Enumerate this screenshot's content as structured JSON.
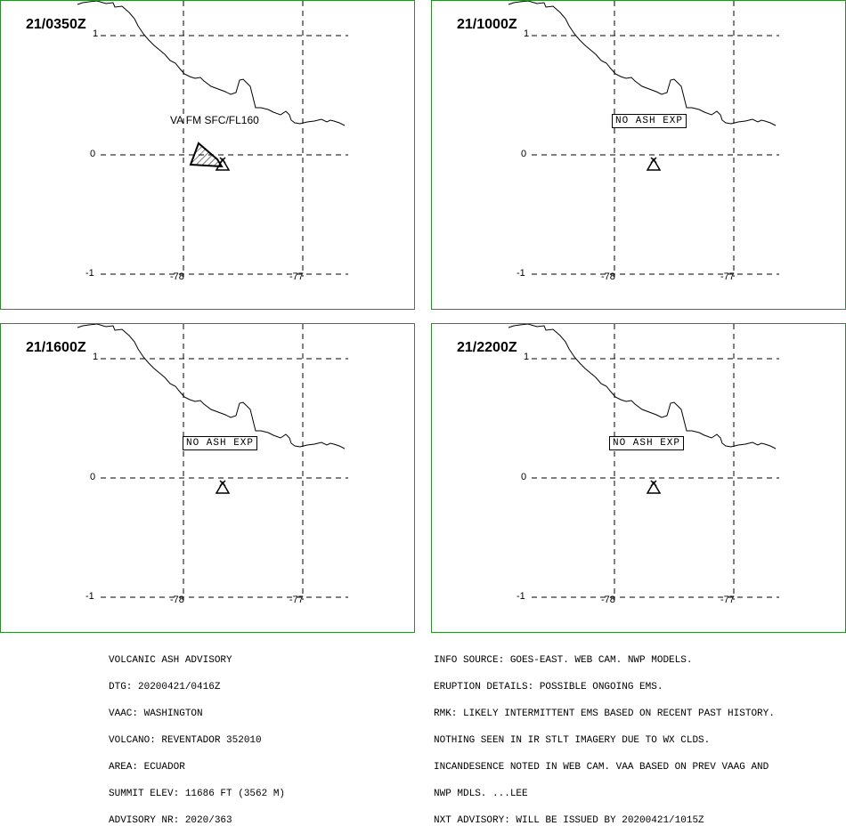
{
  "panels": [
    {
      "time": "21/0350Z",
      "label": "VA FM SFC/FL160",
      "ash": true
    },
    {
      "time": "21/1000Z",
      "label": "NO ASH EXP",
      "ash": false
    },
    {
      "time": "21/1600Z",
      "label": "NO ASH EXP",
      "ash": false
    },
    {
      "time": "21/2200Z",
      "label": "NO ASH EXP",
      "ash": false
    }
  ],
  "ticks": {
    "lat_top": "1",
    "lat_mid": "0",
    "lat_bot": "-1",
    "lon_left": "-78",
    "lon_right": "-77"
  },
  "advisory_left": [
    "VOLCANIC ASH ADVISORY",
    "DTG: 20200421/0416Z",
    "VAAC: WASHINGTON",
    "VOLCANO: REVENTADOR 352010",
    "AREA: ECUADOR",
    "SUMMIT ELEV: 11686 FT (3562 M)",
    "ADVISORY NR: 2020/363"
  ],
  "advisory_right": [
    "INFO SOURCE: GOES-EAST. WEB CAM. NWP MODELS.",
    "ERUPTION DETAILS: POSSIBLE ONGOING EMS.",
    "RMK: LIKELY INTERMITTENT EMS BASED ON RECENT PAST HISTORY.",
    "NOTHING SEEN IN IR STLT IMAGERY DUE TO WX CLDS.",
    "INCANDESENCE NOTED IN WEB CAM. VAA BASED ON PREV VAAG AND",
    "NWP MDLS. ...LEE",
    "NXT ADVISORY: WILL BE ISSUED BY 20200421/1015Z"
  ],
  "colors": {
    "border": "#2e8b2e",
    "line": "#000000"
  }
}
